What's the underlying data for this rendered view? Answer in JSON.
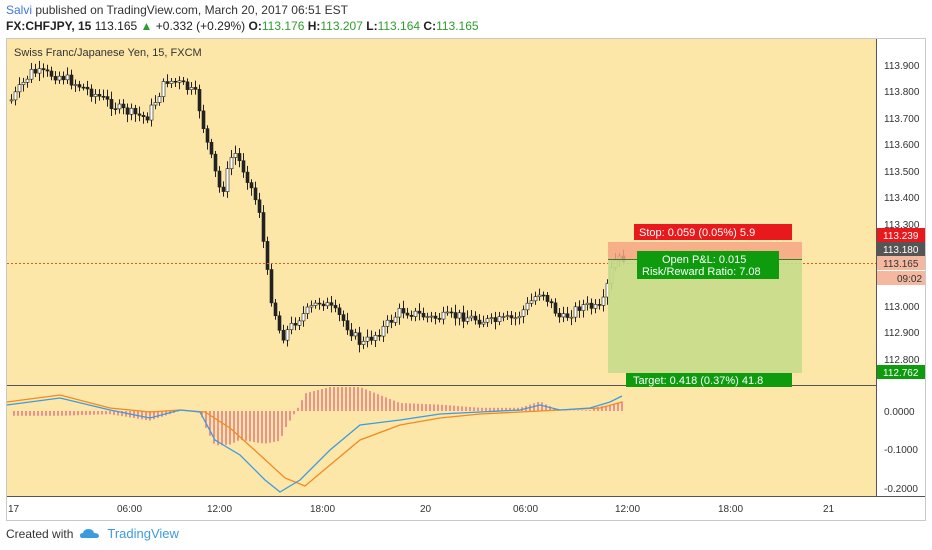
{
  "header": {
    "author": "Salvi",
    "published_text": "published on TradingView.com, March 20, 2017 06:51 EST",
    "symbol": "FX:CHFJPY, 15",
    "last": "113.165",
    "change": "+0.332 (+0.29%)",
    "open_label": "O:",
    "open_value": "113.176",
    "high_label": "H:",
    "high_value": "113.207",
    "low_label": "L:",
    "low_value": "113.164",
    "close_label": "C:",
    "close_value": "113.165"
  },
  "chart": {
    "title": "Swiss Franc/Japanese Yen, 15, FXCM",
    "price_ticks": [
      "113.900",
      "113.800",
      "113.700",
      "113.600",
      "113.500",
      "113.400",
      "113.300",
      "113.000",
      "112.900",
      "112.800"
    ],
    "badges": {
      "stop_price": "113.239",
      "current_price": "113.180",
      "last_price": "113.165",
      "countdown": "09:02",
      "target_price": "112.762"
    },
    "position": {
      "stop_text": "Stop: 0.059 (0.05%) 5.9",
      "open_pnl": "Open P&L: 0.015",
      "risk_reward": "Risk/Reward Ratio: 7.08",
      "target_text": "Target: 0.418 (0.37%) 41.8"
    },
    "macd_ticks": [
      "0.0000",
      "-0.1000",
      "-0.2000"
    ],
    "time_ticks": [
      "17",
      "06:00",
      "12:00",
      "18:00",
      "20",
      "06:00",
      "12:00",
      "18:00",
      "21"
    ],
    "colors": {
      "background": "#fde7a8",
      "up": "#ffffff",
      "down": "#222222",
      "stop": "#e8191c",
      "target": "#0e9c0e",
      "macd_line": "#3c9be0",
      "signal_line": "#f08a24",
      "hist": "#e05a7a"
    }
  },
  "footer": {
    "created_with": "Created with",
    "brand": "TradingView"
  }
}
